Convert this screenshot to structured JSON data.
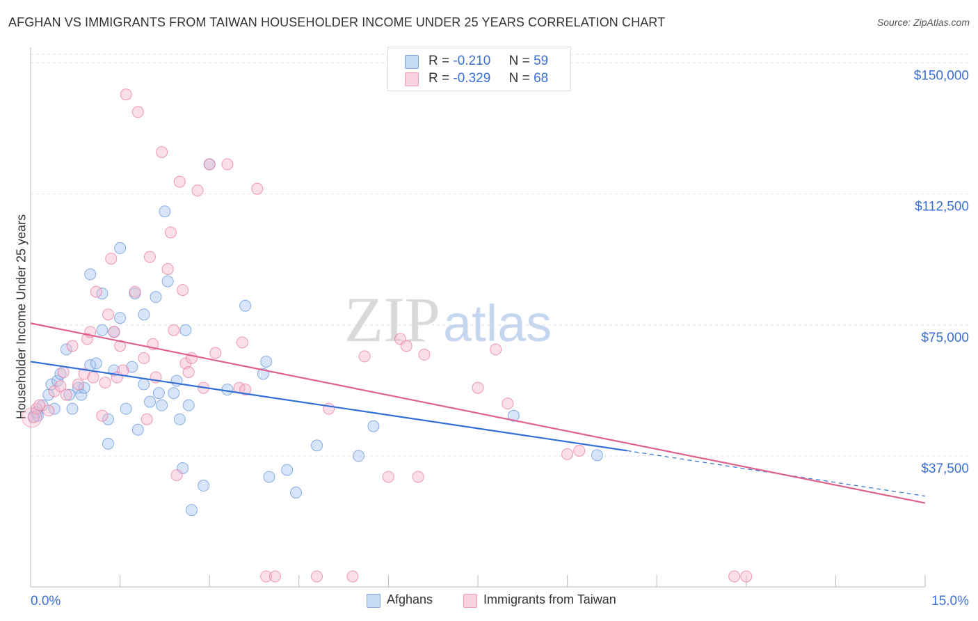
{
  "header": {
    "title": "AFGHAN VS IMMIGRANTS FROM TAIWAN HOUSEHOLDER INCOME UNDER 25 YEARS CORRELATION CHART",
    "source": "Source: ZipAtlas.com"
  },
  "watermark": {
    "zip": "ZIP",
    "atlas": "atlas"
  },
  "stats": [
    {
      "r_label": "R =",
      "r_value": "-0.210",
      "n_label": "N =",
      "n_value": "59",
      "color": "#a8c6f0"
    },
    {
      "r_label": "R =",
      "r_value": "-0.329",
      "n_label": "N =",
      "n_value": "68",
      "color": "#f5b8cb"
    }
  ],
  "legend": [
    {
      "label": "Afghans",
      "color": "#a8c6f0"
    },
    {
      "label": "Immigrants from Taiwan",
      "color": "#f5b8cb"
    }
  ],
  "chart_data": {
    "type": "scatter",
    "title": "AFGHAN VS IMMIGRANTS FROM TAIWAN HOUSEHOLDER INCOME UNDER 25 YEARS CORRELATION CHART",
    "xlabel": "",
    "ylabel": "Householder Income Under 25 years",
    "xlim": [
      0,
      15
    ],
    "ylim": [
      0,
      152500
    ],
    "x_tick_labels": [
      "0.0%",
      "15.0%"
    ],
    "y_ticks": [
      37500,
      75000,
      112500,
      150000
    ],
    "y_tick_labels": [
      "$37,500",
      "$75,000",
      "$112,500",
      "$150,000"
    ],
    "grid": true,
    "series": [
      {
        "name": "Afghans",
        "color": "#5b8fd8",
        "fill": "#a8c6f0",
        "trend": {
          "x0": 0,
          "y0": 64500,
          "x1": 10.0,
          "y1": 39000,
          "dash_to_x": 15,
          "dash_to_y": 26000
        },
        "points": [
          [
            0.05,
            48800
          ],
          [
            0.1,
            50000
          ],
          [
            0.12,
            49000
          ],
          [
            0.2,
            52000
          ],
          [
            0.3,
            55000
          ],
          [
            0.35,
            58000
          ],
          [
            0.4,
            51000
          ],
          [
            0.45,
            59000
          ],
          [
            0.5,
            61000
          ],
          [
            0.6,
            68000
          ],
          [
            0.65,
            55000
          ],
          [
            0.7,
            51000
          ],
          [
            0.8,
            57000
          ],
          [
            0.85,
            55000
          ],
          [
            0.9,
            57000
          ],
          [
            1.0,
            63500
          ],
          [
            1.0,
            89500
          ],
          [
            1.1,
            64000
          ],
          [
            1.2,
            73500
          ],
          [
            1.2,
            84000
          ],
          [
            1.3,
            48000
          ],
          [
            1.3,
            41000
          ],
          [
            1.4,
            73000
          ],
          [
            1.4,
            62000
          ],
          [
            1.5,
            77000
          ],
          [
            1.5,
            97000
          ],
          [
            1.6,
            51000
          ],
          [
            1.7,
            63000
          ],
          [
            1.75,
            84000
          ],
          [
            1.8,
            45000
          ],
          [
            1.9,
            58000
          ],
          [
            1.9,
            78000
          ],
          [
            2.0,
            53000
          ],
          [
            2.1,
            83000
          ],
          [
            2.15,
            55500
          ],
          [
            2.2,
            52000
          ],
          [
            2.25,
            107500
          ],
          [
            2.3,
            87500
          ],
          [
            2.4,
            55500
          ],
          [
            2.45,
            59000
          ],
          [
            2.5,
            48000
          ],
          [
            2.55,
            34000
          ],
          [
            2.6,
            73500
          ],
          [
            2.65,
            52000
          ],
          [
            2.7,
            22000
          ],
          [
            2.9,
            29000
          ],
          [
            3.0,
            121000
          ],
          [
            3.3,
            56500
          ],
          [
            3.6,
            80500
          ],
          [
            3.9,
            61000
          ],
          [
            3.95,
            64500
          ],
          [
            4.0,
            31500
          ],
          [
            4.3,
            33500
          ],
          [
            4.45,
            27000
          ],
          [
            4.8,
            40500
          ],
          [
            5.5,
            37500
          ],
          [
            5.75,
            46000
          ],
          [
            8.1,
            49000
          ],
          [
            9.5,
            37700
          ]
        ]
      },
      {
        "name": "Immigrants from Taiwan",
        "color": "#e8709a",
        "fill": "#f5b8cb",
        "trend": {
          "x0": 0,
          "y0": 75500,
          "x1": 15,
          "y1": 24000
        },
        "points": [
          [
            0.05,
            48500
          ],
          [
            0.1,
            51000
          ],
          [
            0.15,
            52000
          ],
          [
            0.3,
            50500
          ],
          [
            0.4,
            56000
          ],
          [
            0.5,
            57500
          ],
          [
            0.55,
            61500
          ],
          [
            0.6,
            55000
          ],
          [
            0.7,
            69000
          ],
          [
            0.8,
            58000
          ],
          [
            0.9,
            61000
          ],
          [
            0.95,
            71000
          ],
          [
            1.0,
            73000
          ],
          [
            1.05,
            60000
          ],
          [
            1.1,
            84500
          ],
          [
            1.2,
            49000
          ],
          [
            1.25,
            58500
          ],
          [
            1.3,
            78000
          ],
          [
            1.35,
            94000
          ],
          [
            1.4,
            73000
          ],
          [
            1.45,
            60000
          ],
          [
            1.5,
            69000
          ],
          [
            1.55,
            62000
          ],
          [
            1.6,
            141000
          ],
          [
            1.75,
            84500
          ],
          [
            1.8,
            136000
          ],
          [
            1.9,
            65500
          ],
          [
            1.95,
            48000
          ],
          [
            2.0,
            94500
          ],
          [
            2.05,
            69500
          ],
          [
            2.1,
            60000
          ],
          [
            2.2,
            124500
          ],
          [
            2.3,
            91000
          ],
          [
            2.35,
            101500
          ],
          [
            2.4,
            73500
          ],
          [
            2.45,
            32000
          ],
          [
            2.5,
            116000
          ],
          [
            2.55,
            85000
          ],
          [
            2.6,
            64000
          ],
          [
            2.65,
            61500
          ],
          [
            2.7,
            65500
          ],
          [
            2.8,
            113500
          ],
          [
            2.9,
            57000
          ],
          [
            3.0,
            121000
          ],
          [
            3.1,
            67000
          ],
          [
            3.3,
            121000
          ],
          [
            3.5,
            57000
          ],
          [
            3.55,
            70000
          ],
          [
            3.6,
            56500
          ],
          [
            3.8,
            114000
          ],
          [
            3.95,
            3000
          ],
          [
            4.1,
            3000
          ],
          [
            4.8,
            3000
          ],
          [
            5.0,
            51000
          ],
          [
            5.4,
            3000
          ],
          [
            5.6,
            66000
          ],
          [
            6.0,
            31500
          ],
          [
            6.2,
            71000
          ],
          [
            6.3,
            69000
          ],
          [
            6.5,
            31500
          ],
          [
            6.6,
            66500
          ],
          [
            7.5,
            57000
          ],
          [
            7.8,
            68000
          ],
          [
            8.0,
            52500
          ],
          [
            9.0,
            38000
          ],
          [
            9.2,
            39000
          ],
          [
            11.8,
            3000
          ],
          [
            12.0,
            3000
          ]
        ]
      }
    ]
  }
}
